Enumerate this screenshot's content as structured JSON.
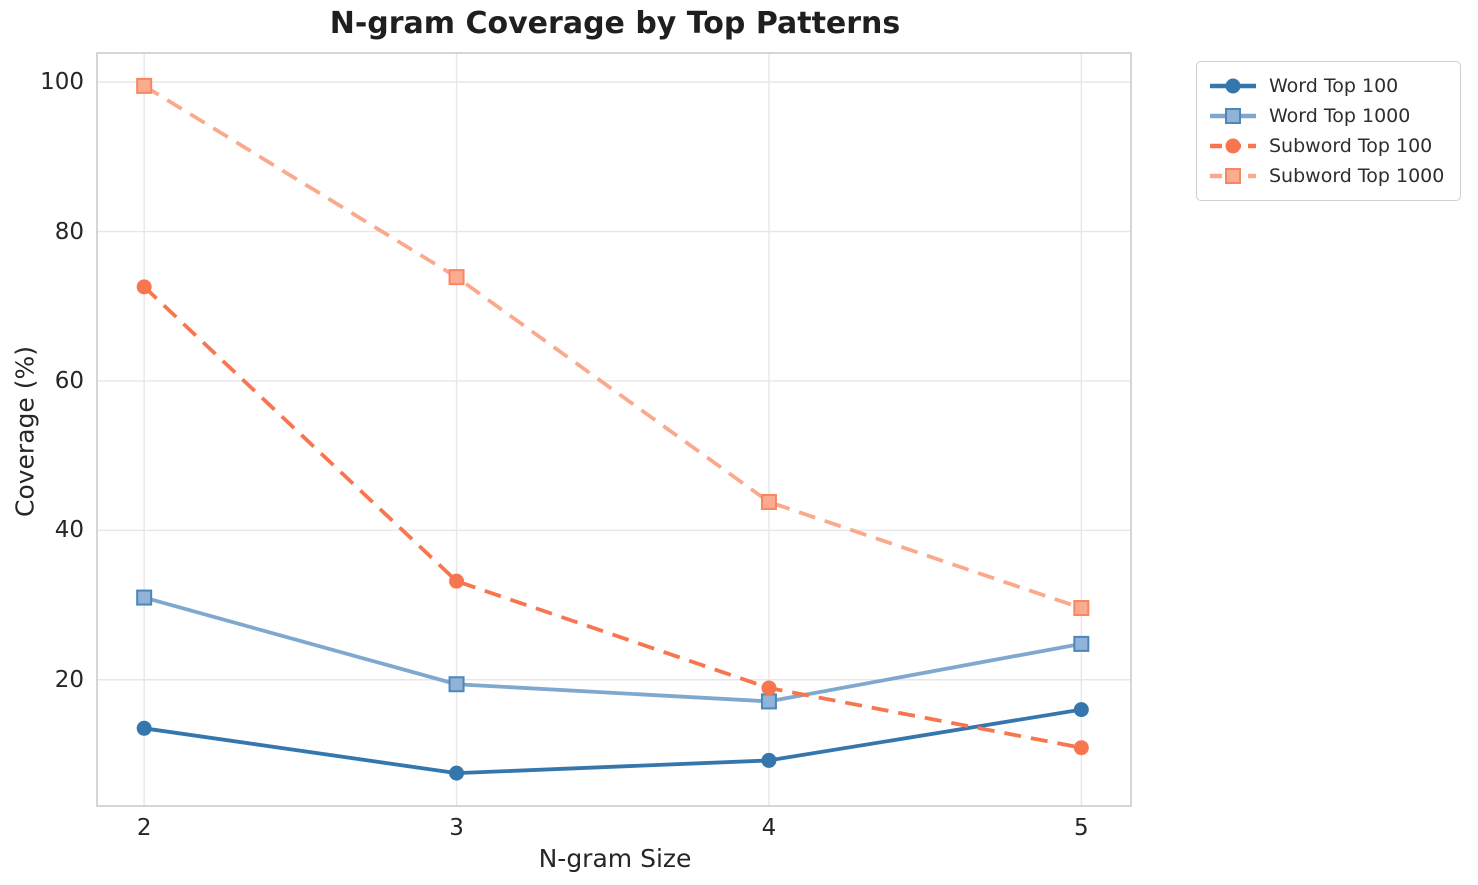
{
  "chart_data": {
    "type": "line",
    "title": "N-gram Coverage by Top Patterns",
    "xlabel": "N-gram Size",
    "ylabel": "Coverage (%)",
    "x": [
      2,
      3,
      4,
      5
    ],
    "xticks": [
      "2",
      "3",
      "4",
      "5"
    ],
    "yticks": [
      20,
      40,
      60,
      80,
      100
    ],
    "ytick_labels": [
      "20",
      "40",
      "60",
      "80",
      "100"
    ],
    "xlim": [
      1.849,
      5.159
    ],
    "ylim": [
      3.1,
      103.9
    ],
    "grid": true,
    "legend_position": "outside-upper-right",
    "colors": {
      "grid": "#e7e7e7",
      "spine": "#cccccc",
      "word_top_100": "#3577AC",
      "word_top_1000": "#7FA8CE",
      "subword_top_100": "#F8764F",
      "subword_top_1000": "#FBA98C"
    },
    "series": [
      {
        "name": "Word Top 100",
        "values": [
          13.5,
          7.5,
          9.2,
          16.0
        ],
        "color": "#3577AC",
        "marker": "circle",
        "marker_fill": "#3577AC",
        "marker_edge": "#3577AC",
        "dash": "solid"
      },
      {
        "name": "Word Top 1000",
        "values": [
          31.0,
          19.4,
          17.1,
          24.8
        ],
        "color": "#7FA8CE",
        "marker": "square",
        "marker_fill": "#90B3D7",
        "marker_edge": "#4C87B9",
        "dash": "solid"
      },
      {
        "name": "Subword Top 100",
        "values": [
          72.6,
          33.2,
          18.9,
          10.9
        ],
        "color": "#F8764F",
        "marker": "circle",
        "marker_fill": "#F8764F",
        "marker_edge": "#F8764F",
        "dash": "dashed"
      },
      {
        "name": "Subword Top 1000",
        "values": [
          99.5,
          73.9,
          43.8,
          29.6
        ],
        "color": "#FBA98C",
        "marker": "square",
        "marker_fill": "#FBAC90",
        "marker_edge": "#F8865F",
        "dash": "dashed"
      }
    ]
  }
}
